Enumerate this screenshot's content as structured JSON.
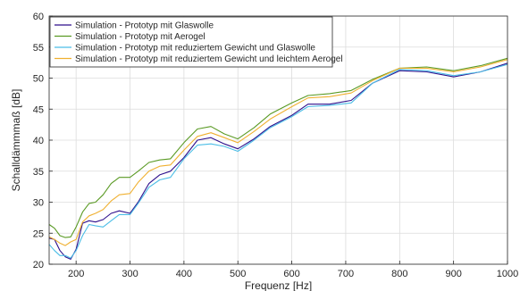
{
  "chart_data": {
    "type": "line",
    "xlabel": "Frequenz [Hz]",
    "ylabel": "Schalldämmmaß [dB]",
    "xlim": [
      150,
      1000
    ],
    "ylim": [
      20,
      60
    ],
    "xticks": [
      200,
      300,
      400,
      500,
      600,
      700,
      800,
      900,
      1000
    ],
    "yticks": [
      20,
      25,
      30,
      35,
      40,
      45,
      50,
      55,
      60
    ],
    "grid": true,
    "legend_position": "top-left",
    "x": [
      150,
      160,
      170,
      180,
      190,
      200,
      212,
      224,
      236,
      250,
      265,
      280,
      300,
      315,
      335,
      355,
      375,
      400,
      425,
      450,
      475,
      500,
      530,
      560,
      600,
      630,
      670,
      710,
      750,
      800,
      850,
      900,
      950,
      1000
    ],
    "series": [
      {
        "name": "Simulation - Prototyp mit Glaswolle",
        "color": "#2e0f8c",
        "values": [
          24.2,
          24.0,
          22.2,
          21.2,
          20.8,
          22.4,
          26.6,
          27.0,
          26.8,
          27.2,
          28.2,
          28.6,
          28.2,
          30.0,
          33.0,
          34.4,
          35.0,
          37.2,
          40.0,
          40.4,
          39.4,
          38.6,
          40.2,
          42.2,
          44.0,
          45.8,
          45.8,
          46.4,
          49.2,
          51.2,
          51.0,
          50.2,
          51.0,
          52.4
        ]
      },
      {
        "name": "Simulation - Prototyp mit Aerogel",
        "color": "#5a9a24",
        "values": [
          26.4,
          25.8,
          24.6,
          24.3,
          24.4,
          26.0,
          28.4,
          29.8,
          30.0,
          31.2,
          33.0,
          34.0,
          34.0,
          35.0,
          36.4,
          36.8,
          37.0,
          39.6,
          41.8,
          42.2,
          41.0,
          40.2,
          42.0,
          44.2,
          46.0,
          47.2,
          47.5,
          48.0,
          49.8,
          51.6,
          51.8,
          51.2,
          52.0,
          53.2
        ]
      },
      {
        "name": "Simulation - Prototyp mit reduziertem Gewicht und Glaswolle",
        "color": "#4bbde6",
        "values": [
          23.2,
          22.2,
          21.4,
          21.4,
          21.0,
          22.2,
          24.6,
          26.4,
          26.2,
          26.0,
          27.0,
          28.0,
          28.0,
          29.8,
          32.4,
          33.6,
          34.0,
          37.0,
          39.2,
          39.4,
          39.0,
          38.2,
          40.0,
          42.0,
          43.8,
          45.4,
          45.6,
          46.0,
          49.2,
          51.4,
          51.2,
          50.4,
          51.0,
          52.2
        ]
      },
      {
        "name": "Simulation - Prototyp mit reduziertem Gewicht und leichtem Aerogel",
        "color": "#f0b030",
        "values": [
          24.4,
          24.0,
          23.4,
          23.0,
          23.6,
          24.0,
          26.8,
          27.8,
          28.2,
          28.8,
          30.2,
          31.2,
          31.4,
          33.2,
          35.0,
          35.8,
          36.0,
          38.4,
          40.6,
          41.2,
          40.4,
          39.6,
          41.4,
          43.4,
          45.4,
          46.8,
          47.0,
          47.6,
          49.6,
          51.6,
          51.6,
          51.0,
          51.8,
          53.0
        ]
      }
    ]
  }
}
